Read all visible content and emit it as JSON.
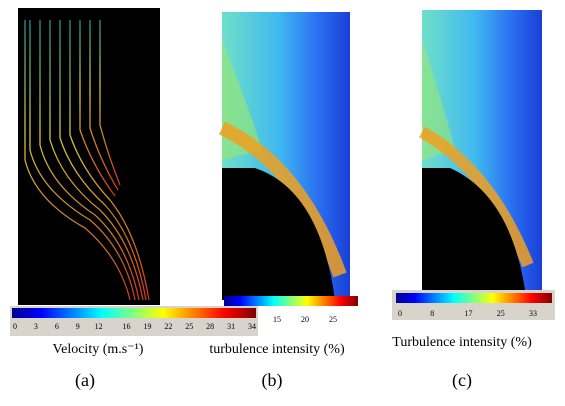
{
  "panels": [
    {
      "tag": "(a)",
      "colorbar_label": "Velocity (m.s⁻¹)",
      "colorbar_ticks": [
        0,
        3,
        6,
        9,
        12,
        16,
        19,
        22,
        25,
        28,
        31,
        34
      ]
    },
    {
      "tag": "(b)",
      "colorbar_label": "turbulence intensity (%)",
      "colorbar_ticks": [
        15,
        20,
        25
      ]
    },
    {
      "tag": "(c)",
      "colorbar_label": "Turbulence intensity (%)",
      "colorbar_ticks": [
        0,
        8,
        17,
        25,
        33
      ]
    }
  ]
}
